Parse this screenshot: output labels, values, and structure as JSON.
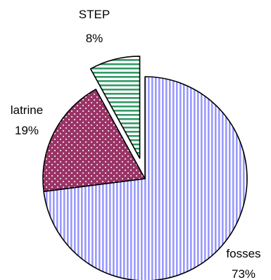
{
  "chart_data": {
    "type": "pie",
    "title": "",
    "legend": "none",
    "slices": [
      {
        "label": "fosses",
        "value": 73,
        "value_label": "73%",
        "pattern": "vertical-stripes",
        "color": "#9999ff",
        "exploded": false
      },
      {
        "label": "latrine",
        "value": 19,
        "value_label": "19%",
        "pattern": "dots",
        "color": "#993366",
        "exploded": false
      },
      {
        "label": "STEP",
        "value": 8,
        "value_label": "8%",
        "pattern": "horizontal-stripes",
        "color": "#339966",
        "exploded": true
      }
    ]
  }
}
